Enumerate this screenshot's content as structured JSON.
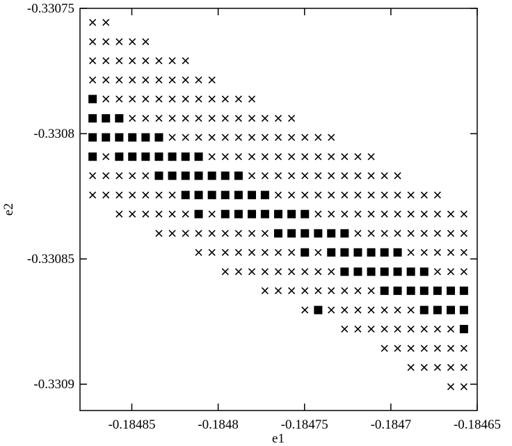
{
  "chart_data": {
    "type": "scatter",
    "xlabel": "e1",
    "ylabel": "e2",
    "xlim": [
      -0.18488,
      -0.18465
    ],
    "xticks": [
      -0.18485,
      -0.1848,
      -0.18475,
      -0.1847,
      -0.18465
    ],
    "ylim": [
      -0.3309105,
      -0.33075
    ],
    "yticks": [
      -0.33075,
      -0.3308,
      -0.33085,
      -0.3309
    ],
    "series": [
      {
        "marker": "x",
        "color": "#000000",
        "x": [
          -0.1848727,
          -0.184865,
          -0.1848727,
          -0.184865,
          -0.1848573,
          -0.1848497,
          -0.184842,
          -0.1848727,
          -0.184865,
          -0.1848573,
          -0.1848497,
          -0.184842,
          -0.1848343,
          -0.1848266,
          -0.1848189,
          -0.1848727,
          -0.184865,
          -0.1848573,
          -0.1848497,
          -0.184842,
          -0.1848343,
          -0.1848266,
          -0.1848189,
          -0.1848113,
          -0.1848036,
          -0.184865,
          -0.1848573,
          -0.1848497,
          -0.184842,
          -0.1848343,
          -0.1848266,
          -0.1848189,
          -0.1848113,
          -0.1848036,
          -0.1847959,
          -0.1847882,
          -0.1847805,
          -0.1848497,
          -0.184842,
          -0.1848343,
          -0.1848266,
          -0.1848189,
          -0.1848113,
          -0.1848036,
          -0.1847959,
          -0.1847882,
          -0.1847805,
          -0.1847729,
          -0.1847652,
          -0.1847575,
          -0.1848266,
          -0.1848189,
          -0.1848113,
          -0.1848036,
          -0.1847959,
          -0.1847882,
          -0.1847805,
          -0.1847729,
          -0.1847652,
          -0.1847575,
          -0.1847498,
          -0.1847421,
          -0.1847345,
          -0.184865,
          -0.1848036,
          -0.1847959,
          -0.1847882,
          -0.1847805,
          -0.1847729,
          -0.1847652,
          -0.1847575,
          -0.1847498,
          -0.1847421,
          -0.1847345,
          -0.1847268,
          -0.1847191,
          -0.1847114,
          -0.1848727,
          -0.184865,
          -0.1848573,
          -0.1848497,
          -0.184842,
          -0.1847805,
          -0.1847729,
          -0.1847652,
          -0.1847575,
          -0.1847498,
          -0.1847421,
          -0.1847345,
          -0.1847268,
          -0.1847191,
          -0.1847114,
          -0.1847037,
          -0.1846961,
          -0.1848727,
          -0.184865,
          -0.1848573,
          -0.1848497,
          -0.184842,
          -0.1848343,
          -0.1848266,
          -0.1847652,
          -0.1847575,
          -0.1847498,
          -0.1847421,
          -0.1847345,
          -0.1847268,
          -0.1847191,
          -0.1847114,
          -0.1847037,
          -0.1846961,
          -0.1846884,
          -0.1846807,
          -0.184673,
          -0.1848573,
          -0.1848497,
          -0.184842,
          -0.1848343,
          -0.1848266,
          -0.1848189,
          -0.1848036,
          -0.1847421,
          -0.1847345,
          -0.1847268,
          -0.1847191,
          -0.1847114,
          -0.1847037,
          -0.1846961,
          -0.1846884,
          -0.1846807,
          -0.184673,
          -0.1846653,
          -0.1846577,
          -0.1848343,
          -0.1848266,
          -0.1848189,
          -0.1848113,
          -0.1848036,
          -0.1847959,
          -0.1847882,
          -0.1847805,
          -0.1847729,
          -0.1847191,
          -0.1847114,
          -0.1847037,
          -0.1846961,
          -0.1846884,
          -0.1846807,
          -0.184673,
          -0.1846653,
          -0.1846577,
          -0.1848113,
          -0.1848036,
          -0.1847959,
          -0.1847882,
          -0.1847805,
          -0.1847729,
          -0.1847652,
          -0.1847575,
          -0.1847421,
          -0.1846884,
          -0.1846807,
          -0.184673,
          -0.1846653,
          -0.1846577,
          -0.1847959,
          -0.1847882,
          -0.1847805,
          -0.1847729,
          -0.1847652,
          -0.1847575,
          -0.1847498,
          -0.1847421,
          -0.1847345,
          -0.184673,
          -0.1846653,
          -0.1846577,
          -0.1847729,
          -0.1847652,
          -0.1847575,
          -0.1847498,
          -0.1847421,
          -0.1847345,
          -0.1847268,
          -0.1847191,
          -0.1847114,
          -0.1847498,
          -0.1847345,
          -0.1847268,
          -0.1847191,
          -0.1847114,
          -0.1847037,
          -0.1846961,
          -0.1846884,
          -0.1847268,
          -0.1847191,
          -0.1847114,
          -0.1847037,
          -0.1846961,
          -0.1846884,
          -0.1846807,
          -0.184673,
          -0.1846653,
          -0.1847037,
          -0.1846961,
          -0.1846884,
          -0.1846807,
          -0.184673,
          -0.1846653,
          -0.1846577,
          -0.1846884,
          -0.1846807,
          -0.184673,
          -0.1846653,
          -0.1846577,
          -0.1846653,
          -0.1846577
        ],
        "values": [
          -0.3307556,
          -0.3307556,
          -0.3307633,
          -0.3307633,
          -0.3307633,
          -0.3307633,
          -0.3307633,
          -0.3307709,
          -0.3307709,
          -0.3307709,
          -0.3307709,
          -0.3307709,
          -0.3307709,
          -0.3307709,
          -0.3307709,
          -0.3307786,
          -0.3307786,
          -0.3307786,
          -0.3307786,
          -0.3307786,
          -0.3307786,
          -0.3307786,
          -0.3307786,
          -0.3307786,
          -0.3307786,
          -0.3307862,
          -0.3307862,
          -0.3307862,
          -0.3307862,
          -0.3307862,
          -0.3307862,
          -0.3307862,
          -0.3307862,
          -0.3307862,
          -0.3307862,
          -0.3307862,
          -0.3307862,
          -0.3307939,
          -0.3307939,
          -0.3307939,
          -0.3307939,
          -0.3307939,
          -0.3307939,
          -0.3307939,
          -0.3307939,
          -0.3307939,
          -0.3307939,
          -0.3307939,
          -0.3307939,
          -0.3307939,
          -0.3308015,
          -0.3308015,
          -0.3308015,
          -0.3308015,
          -0.3308015,
          -0.3308015,
          -0.3308015,
          -0.3308015,
          -0.3308015,
          -0.3308015,
          -0.3308015,
          -0.3308015,
          -0.3308015,
          -0.3308092,
          -0.3308092,
          -0.3308092,
          -0.3308092,
          -0.3308092,
          -0.3308092,
          -0.3308092,
          -0.3308092,
          -0.3308092,
          -0.3308092,
          -0.3308092,
          -0.3308092,
          -0.3308092,
          -0.3308092,
          -0.3308168,
          -0.3308168,
          -0.3308168,
          -0.3308168,
          -0.3308168,
          -0.3308168,
          -0.3308168,
          -0.3308168,
          -0.3308168,
          -0.3308168,
          -0.3308168,
          -0.3308168,
          -0.3308168,
          -0.3308168,
          -0.3308168,
          -0.3308168,
          -0.3308168,
          -0.3308245,
          -0.3308245,
          -0.3308245,
          -0.3308245,
          -0.3308245,
          -0.3308245,
          -0.3308245,
          -0.3308245,
          -0.3308245,
          -0.3308245,
          -0.3308245,
          -0.3308245,
          -0.3308245,
          -0.3308245,
          -0.3308245,
          -0.3308245,
          -0.3308245,
          -0.3308245,
          -0.3308245,
          -0.3308245,
          -0.3308321,
          -0.3308321,
          -0.3308321,
          -0.3308321,
          -0.3308321,
          -0.3308321,
          -0.3308321,
          -0.3308321,
          -0.3308321,
          -0.3308321,
          -0.3308321,
          -0.3308321,
          -0.3308321,
          -0.3308321,
          -0.3308321,
          -0.3308321,
          -0.3308321,
          -0.3308321,
          -0.3308321,
          -0.3308398,
          -0.3308398,
          -0.3308398,
          -0.3308398,
          -0.3308398,
          -0.3308398,
          -0.3308398,
          -0.3308398,
          -0.3308398,
          -0.3308398,
          -0.3308398,
          -0.3308398,
          -0.3308398,
          -0.3308398,
          -0.3308398,
          -0.3308398,
          -0.3308398,
          -0.3308398,
          -0.3308474,
          -0.3308474,
          -0.3308474,
          -0.3308474,
          -0.3308474,
          -0.3308474,
          -0.3308474,
          -0.3308474,
          -0.3308474,
          -0.3308474,
          -0.3308474,
          -0.3308474,
          -0.3308474,
          -0.3308474,
          -0.3308551,
          -0.3308551,
          -0.3308551,
          -0.3308551,
          -0.3308551,
          -0.3308551,
          -0.3308551,
          -0.3308551,
          -0.3308551,
          -0.3308551,
          -0.3308551,
          -0.3308551,
          -0.3308627,
          -0.3308627,
          -0.3308627,
          -0.3308627,
          -0.3308627,
          -0.3308627,
          -0.3308627,
          -0.3308627,
          -0.3308627,
          -0.3308704,
          -0.3308704,
          -0.3308704,
          -0.3308704,
          -0.3308704,
          -0.3308704,
          -0.3308704,
          -0.3308704,
          -0.330878,
          -0.330878,
          -0.330878,
          -0.330878,
          -0.330878,
          -0.330878,
          -0.330878,
          -0.330878,
          -0.330878,
          -0.3308857,
          -0.3308857,
          -0.3308857,
          -0.3308857,
          -0.3308857,
          -0.3308857,
          -0.3308857,
          -0.3308933,
          -0.3308933,
          -0.3308933,
          -0.3308933,
          -0.3308933,
          -0.330901,
          -0.330901
        ]
      },
      {
        "marker": "square",
        "color": "#000000",
        "x": [
          -0.1848727,
          -0.1848727,
          -0.184865,
          -0.1848573,
          -0.1848727,
          -0.184865,
          -0.1848573,
          -0.1848497,
          -0.184842,
          -0.1848343,
          -0.1848727,
          -0.1848573,
          -0.1848497,
          -0.184842,
          -0.1848343,
          -0.1848266,
          -0.1848189,
          -0.1848113,
          -0.1848343,
          -0.1848266,
          -0.1848189,
          -0.1848113,
          -0.1848036,
          -0.1847959,
          -0.1847882,
          -0.1848189,
          -0.1848113,
          -0.1848036,
          -0.1847959,
          -0.1847882,
          -0.1847805,
          -0.1847729,
          -0.1848113,
          -0.1847959,
          -0.1847882,
          -0.1847805,
          -0.1847729,
          -0.1847652,
          -0.1847575,
          -0.1847498,
          -0.1847652,
          -0.1847575,
          -0.1847498,
          -0.1847421,
          -0.1847345,
          -0.1847268,
          -0.1847498,
          -0.1847345,
          -0.1847268,
          -0.1847191,
          -0.1847114,
          -0.1847037,
          -0.1846961,
          -0.1847268,
          -0.1847191,
          -0.1847114,
          -0.1847037,
          -0.1846961,
          -0.1846884,
          -0.1846807,
          -0.1847037,
          -0.1846961,
          -0.1846884,
          -0.1846807,
          -0.184673,
          -0.1846653,
          -0.1846577,
          -0.1847421,
          -0.1846807,
          -0.184673,
          -0.1846653,
          -0.1846577,
          -0.1846577
        ],
        "values": [
          -0.3307862,
          -0.3307939,
          -0.3307939,
          -0.3307939,
          -0.3308015,
          -0.3308015,
          -0.3308015,
          -0.3308015,
          -0.3308015,
          -0.3308015,
          -0.3308092,
          -0.3308092,
          -0.3308092,
          -0.3308092,
          -0.3308092,
          -0.3308092,
          -0.3308092,
          -0.3308092,
          -0.3308168,
          -0.3308168,
          -0.3308168,
          -0.3308168,
          -0.3308168,
          -0.3308168,
          -0.3308168,
          -0.3308245,
          -0.3308245,
          -0.3308245,
          -0.3308245,
          -0.3308245,
          -0.3308245,
          -0.3308245,
          -0.3308321,
          -0.3308321,
          -0.3308321,
          -0.3308321,
          -0.3308321,
          -0.3308321,
          -0.3308321,
          -0.3308321,
          -0.3308398,
          -0.3308398,
          -0.3308398,
          -0.3308398,
          -0.3308398,
          -0.3308398,
          -0.3308474,
          -0.3308474,
          -0.3308474,
          -0.3308474,
          -0.3308474,
          -0.3308474,
          -0.3308474,
          -0.3308551,
          -0.3308551,
          -0.3308551,
          -0.3308551,
          -0.3308551,
          -0.3308551,
          -0.3308551,
          -0.3308627,
          -0.3308627,
          -0.3308627,
          -0.3308627,
          -0.3308627,
          -0.3308627,
          -0.3308627,
          -0.3308704,
          -0.3308704,
          -0.3308704,
          -0.3308704,
          -0.3308704,
          -0.330878
        ]
      }
    ]
  }
}
